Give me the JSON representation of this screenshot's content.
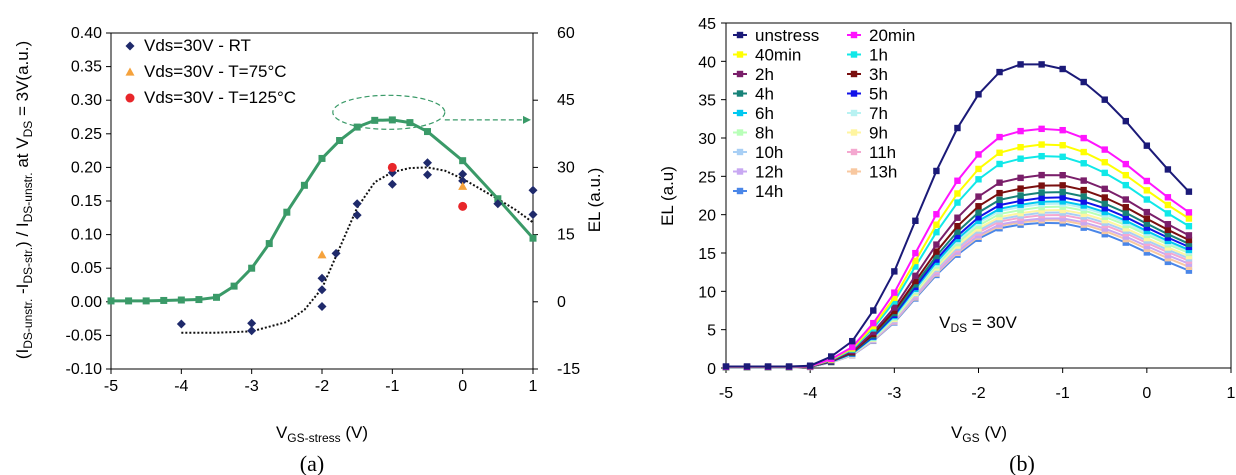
{
  "captions": [
    "(a)",
    "(b)"
  ],
  "chart_data": [
    {
      "type": "scatter",
      "panel": "(a)",
      "xlabel": "V_GS-stress (V)",
      "ylabel": "(I_DS-unstr. - I_DS-str.) / I_DS-unstr. at V_DS = 3V(a.u.)",
      "y2label": "EL (a.u.)",
      "xlim": [
        -5,
        1
      ],
      "ylim": [
        -0.1,
        0.4
      ],
      "y2lim": [
        -15,
        60
      ],
      "xticks": [
        "-5",
        "-4",
        "-3",
        "-2",
        "-1",
        "0",
        "1"
      ],
      "yticks": [
        "-0.10",
        "-0.05",
        "0.00",
        "0.05",
        "0.10",
        "0.15",
        "0.20",
        "0.25",
        "0.30",
        "0.35",
        "0.40"
      ],
      "y2ticks": [
        "-15",
        "0",
        "15",
        "30",
        "45",
        "60"
      ],
      "legend_position": "top-left",
      "series": [
        {
          "name": "Vds=30V - RT",
          "marker": "diamond",
          "color": "#1f2a6b",
          "axis": "left",
          "x": [
            -4,
            -3,
            -3,
            -2,
            -2,
            -2,
            -1.8,
            -1.5,
            -1.5,
            -1,
            -1,
            -0.5,
            -0.5,
            0,
            0,
            0.5,
            1,
            1
          ],
          "y": [
            -0.033,
            -0.032,
            -0.043,
            0.035,
            0.018,
            -0.007,
            0.072,
            0.146,
            0.129,
            0.192,
            0.175,
            0.207,
            0.189,
            0.19,
            0.18,
            0.146,
            0.166,
            0.13
          ]
        },
        {
          "name": "Vds=30V - T=75°C",
          "marker": "triangle",
          "color": "#f5a23c",
          "axis": "left",
          "x": [
            -2,
            0
          ],
          "y": [
            0.07,
            0.172
          ]
        },
        {
          "name": "Vds=30V - T=125°C",
          "marker": "circle",
          "color": "#e8262a",
          "axis": "left",
          "x": [
            -1,
            0
          ],
          "y": [
            0.2,
            0.142
          ]
        },
        {
          "name": "",
          "type": "line",
          "marker": "square",
          "color": "#3a9a68",
          "axis": "right",
          "x": [
            -5,
            -4.75,
            -4.5,
            -4.25,
            -4,
            -3.75,
            -3.5,
            -3.25,
            -3,
            -2.75,
            -2.5,
            -2.25,
            -2,
            -1.75,
            -1.5,
            -1.25,
            -1,
            -0.75,
            -0.5,
            0,
            0.5,
            1
          ],
          "y": [
            0.2,
            0.2,
            0.2,
            0.3,
            0.4,
            0.5,
            1,
            3.5,
            7.5,
            13,
            20,
            26,
            32,
            36,
            39,
            40.5,
            40.6,
            40,
            38,
            31.5,
            23,
            14.2
          ]
        }
      ],
      "trend_line": {
        "style": "dotted",
        "color": "#111111",
        "x": [
          -4,
          -3.5,
          -3,
          -2.5,
          -2.25,
          -2,
          -1.75,
          -1.5,
          -1.25,
          -1,
          -0.75,
          -0.5,
          -0.25,
          0,
          0.25,
          0.5,
          0.75,
          1
        ],
        "y": [
          -0.046,
          -0.046,
          -0.044,
          -0.03,
          -0.012,
          0.02,
          0.08,
          0.14,
          0.178,
          0.193,
          0.199,
          0.2,
          0.195,
          0.183,
          0.168,
          0.153,
          0.137,
          0.118
        ]
      },
      "annotation": {
        "shape": "dashed-ellipse",
        "arrow": "right",
        "color": "#3a9a68"
      }
    },
    {
      "type": "line",
      "panel": "(b)",
      "xlabel": "V_GS (V)",
      "ylabel": "EL (a.u)",
      "xlim": [
        -5,
        1
      ],
      "ylim": [
        0,
        45
      ],
      "xticks": [
        "-5",
        "-4",
        "-3",
        "-2",
        "-1",
        "0",
        "1"
      ],
      "yticks": [
        "0",
        "5",
        "10",
        "15",
        "20",
        "25",
        "30",
        "35",
        "40",
        "45"
      ],
      "annotation_text": "V_DS = 30V",
      "legend_position": "top-left",
      "x": [
        -5,
        -4.75,
        -4.5,
        -4.25,
        -4,
        -3.75,
        -3.5,
        -3.25,
        -3,
        -2.75,
        -2.5,
        -2.25,
        -2,
        -1.75,
        -1.5,
        -1.25,
        -1,
        -0.75,
        -0.5,
        -0.25,
        0,
        0.25,
        0.5
      ],
      "series": [
        {
          "name": "unstress",
          "color": "#1b1a78",
          "peak": 39.6,
          "end": 23
        },
        {
          "name": "20min",
          "color": "#ff14ff",
          "peak": 30.9,
          "end": 20.3
        },
        {
          "name": "40min",
          "color": "#ffff00",
          "peak": 28.8,
          "end": 19.5
        },
        {
          "name": "1h",
          "color": "#10e8e8",
          "peak": 27.3,
          "end": 18.5
        },
        {
          "name": "2h",
          "color": "#7a1f6a",
          "peak": 24.8,
          "end": 17.3
        },
        {
          "name": "3h",
          "color": "#7a0f0f",
          "peak": 23.4,
          "end": 16.7
        },
        {
          "name": "4h",
          "color": "#178278",
          "peak": 22.5,
          "end": 16.2
        },
        {
          "name": "5h",
          "color": "#1212e8",
          "peak": 21.8,
          "end": 15.8
        },
        {
          "name": "6h",
          "color": "#00c8f0",
          "peak": 21.3,
          "end": 15.4
        },
        {
          "name": "7h",
          "color": "#b8f2f2",
          "peak": 21.0,
          "end": 15.2
        },
        {
          "name": "8h",
          "color": "#b8ffb8",
          "peak": 20.6,
          "end": 15.0
        },
        {
          "name": "9h",
          "color": "#fff5a0",
          "peak": 20.2,
          "end": 14.6
        },
        {
          "name": "10h",
          "color": "#a8cff5",
          "peak": 19.9,
          "end": 14.3
        },
        {
          "name": "11h",
          "color": "#f4a8d0",
          "peak": 19.6,
          "end": 14.0
        },
        {
          "name": "12h",
          "color": "#c8a8f2",
          "peak": 19.2,
          "end": 13.6
        },
        {
          "name": "13h",
          "color": "#f8c8a0",
          "peak": 19.0,
          "end": 13.2
        },
        {
          "name": "14h",
          "color": "#4a86e8",
          "peak": 18.7,
          "end": 12.7
        }
      ]
    }
  ]
}
